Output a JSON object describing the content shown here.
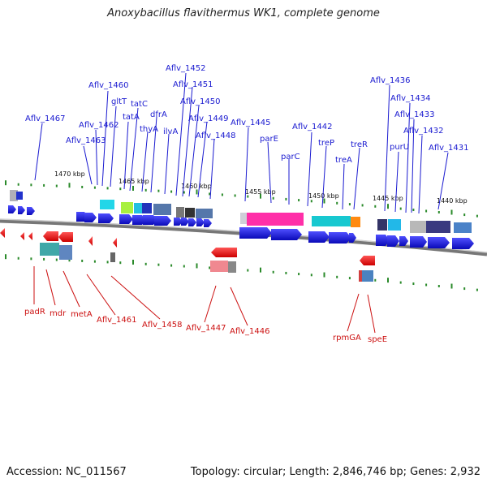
{
  "header": {
    "title": "Anoxybacillus flavithermus WK1, complete genome"
  },
  "footer": {
    "accession": "Accession: NC_011567",
    "summary": "Topology: circular; Length: 2,846,746 bp; Genes: 2,932"
  },
  "kbp_ticks": [
    "1470 kbp",
    "1465 kbp",
    "1460 kbp",
    "1455 kbp",
    "1450 kbp",
    "1445 kbp",
    "1440 kbp"
  ],
  "top_labels": [
    "Aflv_1467",
    "Aflv_1463",
    "Aflv_1462",
    "Aflv_1460",
    "gltT",
    "tatA",
    "tatC",
    "thyA",
    "dfrA",
    "ilvA",
    "Aflv_1452",
    "Aflv_1451",
    "Aflv_1450",
    "Aflv_1449",
    "Aflv_1448",
    "Aflv_1445",
    "parE",
    "parC",
    "Aflv_1442",
    "treP",
    "treA",
    "treR",
    "Aflv_1436",
    "purU",
    "Aflv_1434",
    "Aflv_1433",
    "Aflv_1432",
    "Aflv_1431"
  ],
  "bottom_labels": [
    "padR",
    "mdr",
    "metA",
    "Aflv_1461",
    "Aflv_1458",
    "Aflv_1447",
    "Aflv_1446",
    "rpmGA",
    "speE"
  ],
  "colors": {
    "forward": "#1a1ad0",
    "reverse": "#ee1111",
    "backbone": "#888888",
    "tick": "#2a8a2a"
  }
}
